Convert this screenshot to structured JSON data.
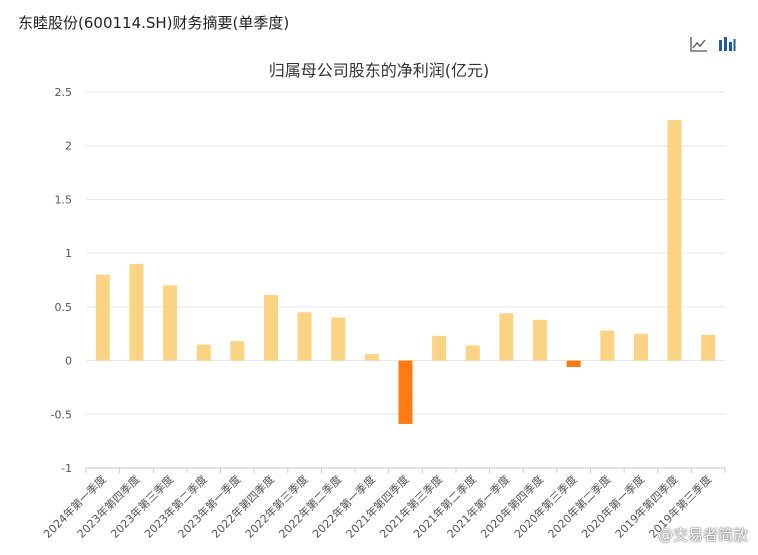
{
  "page": {
    "title": "东睦股份(600114.SH)财务摘要(单季度)",
    "watermark": "@交易者简放"
  },
  "toolbar": {
    "line_icon": "line-chart-icon",
    "bar_icon": "bar-chart-icon",
    "active_color": "#1f5aa6",
    "inactive_color": "#555555"
  },
  "chart_data": {
    "type": "bar",
    "title": "归属母公司股东的净利润(亿元)",
    "xlabel": "",
    "ylabel": "",
    "ylim": [
      -1,
      2.5
    ],
    "yticks": [
      -1,
      -0.5,
      0,
      0.5,
      1,
      1.5,
      2,
      2.5
    ],
    "ytick_labels": [
      "-1",
      "-0.5",
      "0",
      "0.5",
      "1",
      "1.5",
      "2",
      "2.5"
    ],
    "grid": true,
    "legend": "none",
    "positive_color": "#fbd384",
    "negative_color": "#ff7a12",
    "categories": [
      "2024年第一季度",
      "2023年第四季度",
      "2023年第三季度",
      "2023年第二季度",
      "2023年第一季度",
      "2022年第四季度",
      "2022年第三季度",
      "2022年第二季度",
      "2022年第一季度",
      "2021年第四季度",
      "2021年第三季度",
      "2021年第二季度",
      "2021年第一季度",
      "2020年第四季度",
      "2020年第三季度",
      "2020年第二季度",
      "2020年第一季度",
      "2019年第四季度",
      "2019年第三季度"
    ],
    "values": [
      0.8,
      0.9,
      0.7,
      0.15,
      0.18,
      0.61,
      0.45,
      0.4,
      0.06,
      -0.59,
      0.23,
      0.14,
      0.44,
      0.38,
      -0.06,
      0.28,
      0.25,
      2.24,
      0.24
    ]
  }
}
